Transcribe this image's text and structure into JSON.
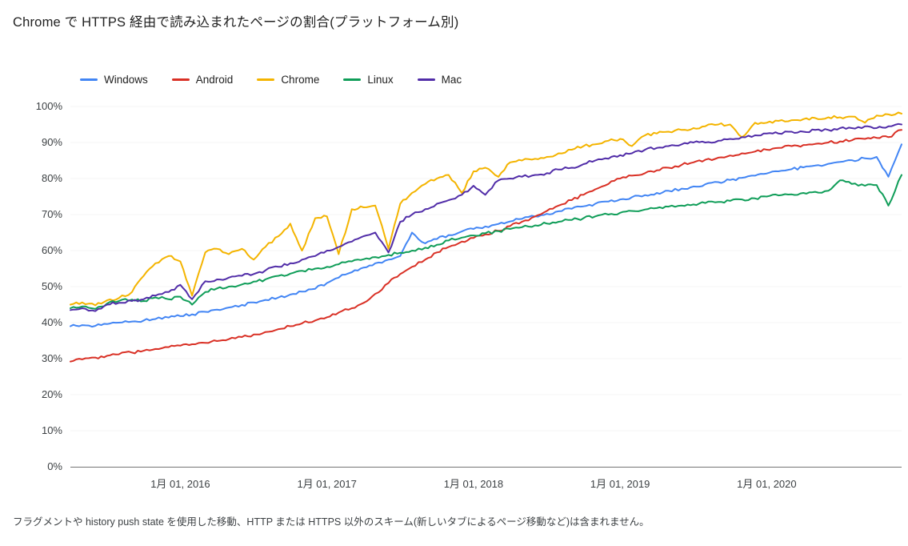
{
  "title": "Chrome で HTTPS 経由で読み込まれたページの割合(プラットフォーム別)",
  "footnote": "フラグメントや history push state を使用した移動、HTTP または HTTPS 以外のスキーム(新しいタブによるページ移動など)は含まれません。",
  "colors": {
    "axis": "#757575",
    "tick_text": "#3c4043",
    "grid": "#f5f5f5"
  },
  "chart_data": {
    "type": "line",
    "title": "Chrome で HTTPS 経由で読み込まれたページの割合(プラットフォーム別)",
    "xlabel": "",
    "ylabel": "",
    "xlim": [
      2015.25,
      2020.92
    ],
    "ylim": [
      0,
      100
    ],
    "grid": false,
    "legend_position": "top",
    "y_ticks": [
      {
        "value": 0,
        "label": "0%"
      },
      {
        "value": 10,
        "label": "10%"
      },
      {
        "value": 20,
        "label": "20%"
      },
      {
        "value": 30,
        "label": "30%"
      },
      {
        "value": 40,
        "label": "40%"
      },
      {
        "value": 50,
        "label": "50%"
      },
      {
        "value": 60,
        "label": "60%"
      },
      {
        "value": 70,
        "label": "70%"
      },
      {
        "value": 80,
        "label": "80%"
      },
      {
        "value": 90,
        "label": "90%"
      },
      {
        "value": 100,
        "label": "100%"
      }
    ],
    "x_ticks": [
      {
        "value": 2016,
        "label": "1月 01, 2016"
      },
      {
        "value": 2017,
        "label": "1月 01, 2017"
      },
      {
        "value": 2018,
        "label": "1月 01, 2018"
      },
      {
        "value": 2019,
        "label": "1月 01, 2019"
      },
      {
        "value": 2020,
        "label": "1月 01, 2020"
      }
    ],
    "x": [
      2015.25,
      2015.33,
      2015.42,
      2015.5,
      2015.58,
      2015.67,
      2015.75,
      2015.83,
      2015.92,
      2016.0,
      2016.08,
      2016.17,
      2016.25,
      2016.33,
      2016.42,
      2016.5,
      2016.58,
      2016.67,
      2016.75,
      2016.83,
      2016.92,
      2017.0,
      2017.08,
      2017.17,
      2017.25,
      2017.33,
      2017.42,
      2017.5,
      2017.58,
      2017.67,
      2017.75,
      2017.83,
      2017.92,
      2018.0,
      2018.08,
      2018.17,
      2018.25,
      2018.33,
      2018.42,
      2018.5,
      2018.58,
      2018.67,
      2018.75,
      2018.83,
      2018.92,
      2019.0,
      2019.08,
      2019.17,
      2019.25,
      2019.33,
      2019.42,
      2019.5,
      2019.58,
      2019.67,
      2019.75,
      2019.83,
      2019.92,
      2020.0,
      2020.08,
      2020.17,
      2020.25,
      2020.33,
      2020.42,
      2020.5,
      2020.58,
      2020.67,
      2020.75,
      2020.83,
      2020.92
    ],
    "series": [
      {
        "name": "Windows",
        "color": "#4285f4",
        "values": [
          39.0,
          39.3,
          39.1,
          39.6,
          40.0,
          40.3,
          40.6,
          41.0,
          41.4,
          41.8,
          42.3,
          43.0,
          43.6,
          44.2,
          44.9,
          45.6,
          46.3,
          47.0,
          47.8,
          48.6,
          49.4,
          51.0,
          52.5,
          54.0,
          55.3,
          56.5,
          57.5,
          58.5,
          65.0,
          62.0,
          63.2,
          64.3,
          65.3,
          66.0,
          66.7,
          67.4,
          68.1,
          68.8,
          69.5,
          70.2,
          70.9,
          71.6,
          72.3,
          73.0,
          73.6,
          74.2,
          74.8,
          75.4,
          76.0,
          76.6,
          77.2,
          77.8,
          78.4,
          79.0,
          79.6,
          80.2,
          80.8,
          81.4,
          82.0,
          82.6,
          83.1,
          83.6,
          84.1,
          84.6,
          85.1,
          85.6,
          86.0,
          80.5,
          89.5
        ]
      },
      {
        "name": "Android",
        "color": "#d93025",
        "values": [
          29.2,
          29.8,
          30.3,
          30.8,
          31.2,
          31.7,
          32.2,
          32.7,
          33.2,
          33.6,
          34.0,
          34.4,
          34.9,
          35.4,
          36.0,
          36.7,
          37.4,
          38.2,
          39.0,
          39.8,
          40.6,
          41.5,
          42.8,
          44.0,
          45.5,
          48.0,
          51.0,
          53.5,
          55.5,
          57.5,
          59.5,
          61.0,
          62.5,
          63.5,
          64.5,
          65.5,
          66.8,
          68.0,
          69.5,
          71.0,
          72.5,
          74.0,
          75.5,
          77.0,
          78.5,
          80.0,
          80.8,
          81.5,
          82.3,
          83.0,
          83.8,
          84.5,
          85.2,
          85.8,
          86.4,
          87.0,
          87.5,
          88.0,
          88.5,
          89.0,
          89.3,
          89.6,
          90.0,
          90.3,
          90.6,
          91.0,
          91.3,
          91.5,
          93.5
        ]
      },
      {
        "name": "Chrome",
        "color": "#f4b400",
        "values": [
          45.0,
          45.6,
          44.8,
          46.2,
          46.8,
          48.5,
          53.0,
          56.5,
          58.5,
          57.0,
          47.5,
          59.5,
          60.5,
          59.0,
          60.5,
          57.5,
          61.0,
          64.0,
          67.5,
          60.0,
          69.0,
          69.5,
          59.0,
          71.5,
          72.0,
          72.5,
          60.5,
          73.0,
          76.0,
          78.5,
          80.0,
          81.0,
          76.0,
          82.0,
          83.0,
          80.5,
          84.5,
          85.0,
          85.5,
          86.0,
          87.0,
          88.0,
          89.0,
          89.5,
          90.5,
          91.0,
          89.0,
          92.0,
          92.5,
          93.0,
          93.5,
          94.0,
          94.5,
          95.0,
          95.0,
          91.5,
          95.5,
          95.5,
          96.0,
          96.2,
          96.5,
          96.8,
          97.0,
          97.0,
          97.2,
          95.5,
          97.5,
          97.8,
          98.0
        ]
      },
      {
        "name": "Linux",
        "color": "#0f9d58",
        "values": [
          44.0,
          44.5,
          43.8,
          45.3,
          46.0,
          46.4,
          46.0,
          47.0,
          46.5,
          47.2,
          45.0,
          48.5,
          49.5,
          50.0,
          50.6,
          51.4,
          52.0,
          53.0,
          53.6,
          54.4,
          55.0,
          55.5,
          56.2,
          57.0,
          57.6,
          58.2,
          58.8,
          59.4,
          60.0,
          60.8,
          61.6,
          62.8,
          63.6,
          64.2,
          64.8,
          65.4,
          66.0,
          66.5,
          67.0,
          67.5,
          68.0,
          68.5,
          69.0,
          69.5,
          70.0,
          70.5,
          71.0,
          71.4,
          71.8,
          72.2,
          72.5,
          72.8,
          73.2,
          73.5,
          73.8,
          74.2,
          74.5,
          75.0,
          75.3,
          75.6,
          76.0,
          76.3,
          76.6,
          79.5,
          78.5,
          78.0,
          78.2,
          72.5,
          81.0
        ]
      },
      {
        "name": "Mac",
        "color": "#512da8",
        "values": [
          43.5,
          44.0,
          43.2,
          45.0,
          45.5,
          46.0,
          46.5,
          47.5,
          48.5,
          50.5,
          46.5,
          51.5,
          52.0,
          52.5,
          53.0,
          53.5,
          54.5,
          55.5,
          56.5,
          57.5,
          58.5,
          60.0,
          61.0,
          62.5,
          64.0,
          65.0,
          59.5,
          68.0,
          70.0,
          71.5,
          73.0,
          74.0,
          75.5,
          78.0,
          75.5,
          79.5,
          80.0,
          80.5,
          81.0,
          81.5,
          82.5,
          83.0,
          84.0,
          85.0,
          85.5,
          86.5,
          87.0,
          88.0,
          88.5,
          89.0,
          89.5,
          90.0,
          90.0,
          90.5,
          91.0,
          91.5,
          92.0,
          92.5,
          92.5,
          93.0,
          93.0,
          93.5,
          93.5,
          94.0,
          94.0,
          94.5,
          94.0,
          94.5,
          95.0
        ]
      }
    ]
  }
}
